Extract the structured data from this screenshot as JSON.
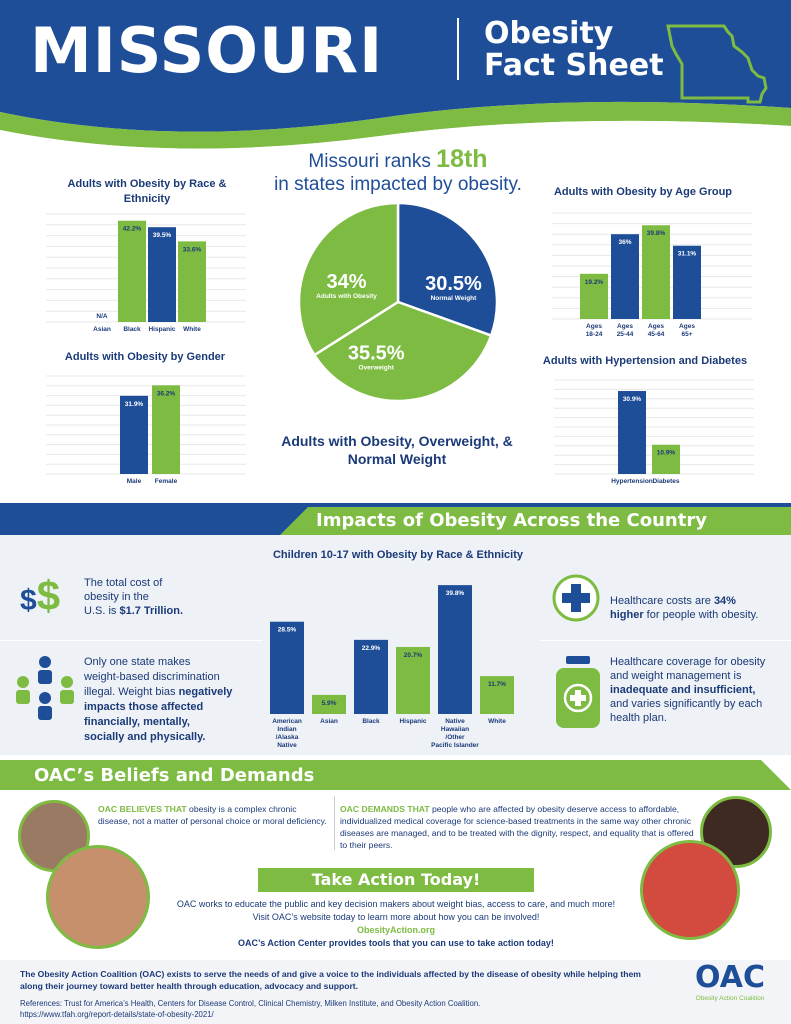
{
  "header": {
    "state": "MISSOURI",
    "subtitle_line1": "Obesity",
    "subtitle_line2": "Fact Sheet"
  },
  "ranking": {
    "prefix": "Missouri ranks",
    "rank": "18th",
    "suffix": "in states impacted by obesity."
  },
  "colors": {
    "navy": "#1f4e99",
    "green": "#7dbb42",
    "dark_text": "#1b3a78"
  },
  "chart_data": [
    {
      "type": "bar",
      "title": "Adults with Obesity by Race & Ethnicity",
      "categories": [
        "Asian",
        "Black",
        "Hispanic",
        "White"
      ],
      "values": [
        null,
        42.2,
        39.5,
        33.6
      ],
      "data_labels": [
        "N/A",
        "42.2%",
        "39.5%",
        "33.6%"
      ],
      "bar_colors": [
        "#7dbb42",
        "#7dbb42",
        "#1f4e99",
        "#7dbb42"
      ],
      "ylim": [
        0,
        45
      ],
      "grid": true
    },
    {
      "type": "bar",
      "title": "Adults with Obesity by Gender",
      "categories": [
        "Male",
        "Female"
      ],
      "values": [
        31.9,
        36.2
      ],
      "data_labels": [
        "31.9%",
        "36.2%"
      ],
      "bar_colors": [
        "#1f4e99",
        "#7dbb42"
      ],
      "ylim": [
        0,
        40
      ],
      "grid": true
    },
    {
      "type": "pie",
      "title": "Adults with Obesity, Overweight, & Normal Weight",
      "categories": [
        "Normal Weight",
        "Overweight",
        "Adults with Obesity"
      ],
      "values": [
        30.5,
        35.5,
        34
      ],
      "data_labels": [
        "30.5%",
        "35.5%",
        "34%"
      ],
      "colors": [
        "#1f4e99",
        "#7dbb42",
        "#7dbb42"
      ]
    },
    {
      "type": "bar",
      "title": "Adults with Obesity by Age Group",
      "categories": [
        "Ages 18-24",
        "Ages 25-44",
        "Ages 45-64",
        "Ages 65+"
      ],
      "values": [
        19.2,
        36,
        39.8,
        31.1
      ],
      "data_labels": [
        "19.2%",
        "36%",
        "39.8%",
        "31.1%"
      ],
      "bar_colors": [
        "#7dbb42",
        "#1f4e99",
        "#7dbb42",
        "#1f4e99"
      ],
      "ylim": [
        0,
        45
      ],
      "grid": true
    },
    {
      "type": "bar",
      "title": "Adults with Hypertension and Diabetes",
      "categories": [
        "Hypertension",
        "Diabetes"
      ],
      "values": [
        30.9,
        10.9
      ],
      "data_labels": [
        "30.9%",
        "10.9%"
      ],
      "bar_colors": [
        "#1f4e99",
        "#7dbb42"
      ],
      "ylim": [
        0,
        35
      ],
      "grid": true
    },
    {
      "type": "bar",
      "title": "Children 10-17 with Obesity by Race & Ethnicity",
      "categories": [
        "American Indian /Alaska Native",
        "Asian",
        "Black",
        "Hispanic",
        "Native Hawaiian /Other Pacific Islander",
        "White"
      ],
      "values": [
        28.5,
        5.9,
        22.9,
        20.7,
        39.8,
        11.7
      ],
      "data_labels": [
        "28.5%",
        "5.9%",
        "22.9%",
        "20.7%",
        "39.8%",
        "11.7%"
      ],
      "bar_colors": [
        "#1f4e99",
        "#7dbb42",
        "#1f4e99",
        "#7dbb42",
        "#1f4e99",
        "#7dbb42"
      ],
      "ylim": [
        0,
        42
      ],
      "grid": false
    }
  ],
  "impacts": {
    "title": "Impacts of Obesity Across the Country",
    "cost_line1": "The total cost of",
    "cost_line2": "obesity in the",
    "cost_line3a": "U.S. is ",
    "cost_line3b": "$1.7 Trillion.",
    "bias_line1": "Only one state makes",
    "bias_line2": "weight-based discrimination",
    "bias_line3a": "illegal. Weight bias ",
    "bias_line3b": "negatively",
    "bias_line4": "impacts those affected",
    "bias_line5": "financially, mentally,",
    "bias_line6": "socially and physically.",
    "hc_line1a": "Healthcare costs are ",
    "hc_line1b": "34%",
    "hc_line2a": "higher",
    "hc_line2b": " for people with obesity.",
    "cov_line1": "Healthcare coverage for obesity",
    "cov_line2": "and weight management is",
    "cov_line3": "inadequate and insufficient,",
    "cov_line4": "and varies significantly by each",
    "cov_line5": "health plan."
  },
  "beliefs": {
    "title": "OAC’s Beliefs and Demands",
    "believes_lead": "OAC BELIEVES THAT",
    "believes_text": " obesity is a complex chronic disease, not a matter of personal choice or moral deficiency.",
    "demands_lead": "OAC DEMANDS THAT",
    "demands_text": " people who are affected by obesity deserve access to affordable, individualized medical coverage for science-based treatments in the same way other chronic diseases are managed, and to be treated with the dignity, respect, and equality that is offered to their peers."
  },
  "take_action": {
    "title": "Take Action Today!",
    "line1": "OAC works to educate the public and key decision makers about weight bias, access to care, and much more!",
    "line2": "Visit OAC’s website today to learn more about how you can be involved!",
    "link": "ObesityAction.org",
    "line3": "OAC’s Action Center provides tools that you can use to take action today!"
  },
  "footer": {
    "mission": "The Obesity Action Coalition (OAC) exists to serve the needs of and give a voice to the individuals affected by the disease of obesity while helping them along their journey toward better health through education, advocacy and support.",
    "references": "References: Trust for America’s Health, Centers for Disease Control, Clinical Chemistry, Milken Institute, and Obesity Action Coalition.",
    "url": "https://www.tfah.org/report-details/state-of-obesity-2021/",
    "logo_text": "OAC",
    "logo_sub": "Obesity Action Coalition"
  }
}
